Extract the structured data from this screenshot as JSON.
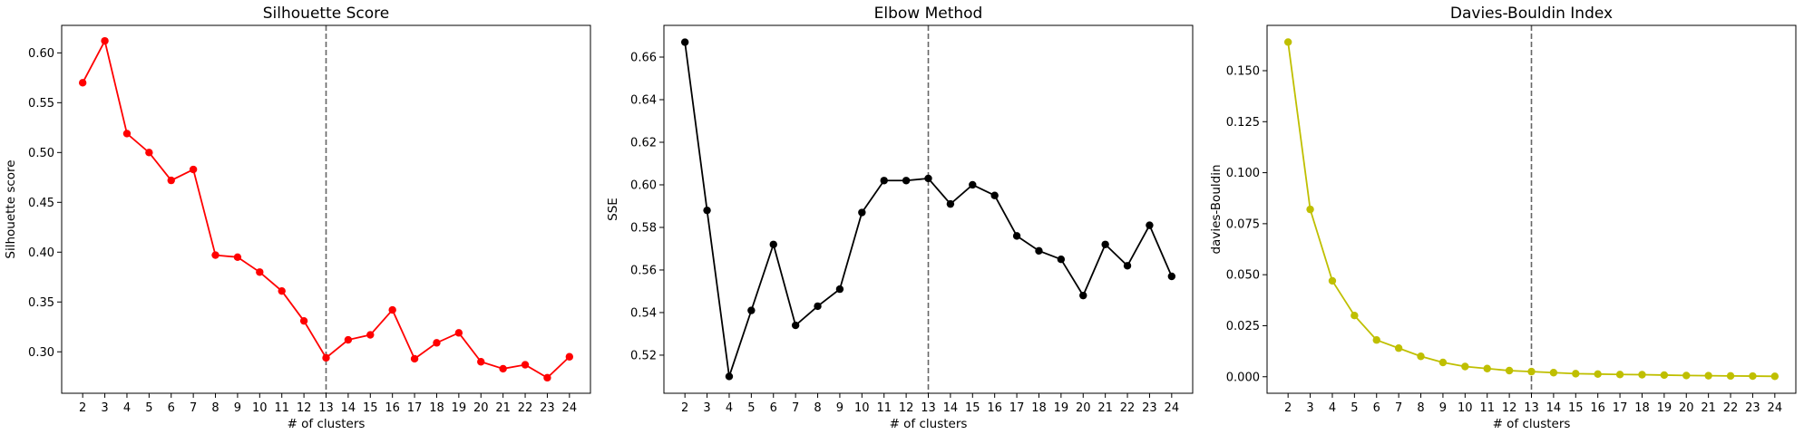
{
  "chart_data": [
    {
      "type": "line",
      "title": "Silhouette Score",
      "xlabel": "# of clusters",
      "ylabel": "Silhouette score",
      "color": "#ff0000",
      "x": [
        2,
        3,
        4,
        5,
        6,
        7,
        8,
        9,
        10,
        11,
        12,
        13,
        14,
        15,
        16,
        17,
        18,
        19,
        20,
        21,
        22,
        23,
        24
      ],
      "values": [
        0.57,
        0.612,
        0.519,
        0.5,
        0.472,
        0.483,
        0.397,
        0.395,
        0.38,
        0.361,
        0.331,
        0.294,
        0.312,
        0.317,
        0.342,
        0.293,
        0.309,
        0.319,
        0.29,
        0.283,
        0.287,
        0.274,
        0.295
      ],
      "xlim": [
        1.05,
        24.95
      ],
      "ylim": [
        0.2584,
        0.6276
      ],
      "yticks": [
        0.3,
        0.35,
        0.4,
        0.45,
        0.5,
        0.55,
        0.6
      ],
      "ytick_labels": [
        "0.30",
        "0.35",
        "0.40",
        "0.45",
        "0.50",
        "0.55",
        "0.60"
      ],
      "vline_x": 13,
      "grid": false
    },
    {
      "type": "line",
      "title": "Elbow Method",
      "xlabel": "# of clusters",
      "ylabel": "SSE",
      "color": "#000000",
      "x": [
        2,
        3,
        4,
        5,
        6,
        7,
        8,
        9,
        10,
        11,
        12,
        13,
        14,
        15,
        16,
        17,
        18,
        19,
        20,
        21,
        22,
        23,
        24
      ],
      "values": [
        0.667,
        0.588,
        0.51,
        0.541,
        0.572,
        0.534,
        0.543,
        0.551,
        0.587,
        0.602,
        0.602,
        0.603,
        0.591,
        0.6,
        0.595,
        0.576,
        0.569,
        0.565,
        0.548,
        0.572,
        0.562,
        0.581,
        0.557
      ],
      "xlim": [
        1.05,
        24.95
      ],
      "ylim": [
        0.5021,
        0.6749
      ],
      "yticks": [
        0.52,
        0.54,
        0.56,
        0.58,
        0.6,
        0.62,
        0.64,
        0.66
      ],
      "ytick_labels": [
        "0.52",
        "0.54",
        "0.56",
        "0.58",
        "0.60",
        "0.62",
        "0.64",
        "0.66"
      ],
      "vline_x": 13,
      "grid": false
    },
    {
      "type": "line",
      "title": "Davies-Bouldin Index",
      "xlabel": "# of clusters",
      "ylabel": "davies-Bouldin",
      "color": "#bfbf00",
      "x": [
        2,
        3,
        4,
        5,
        6,
        7,
        8,
        9,
        10,
        11,
        12,
        13,
        14,
        15,
        16,
        17,
        18,
        19,
        20,
        21,
        22,
        23,
        24
      ],
      "values": [
        0.164,
        0.082,
        0.047,
        0.03,
        0.018,
        0.014,
        0.01,
        0.007,
        0.005,
        0.004,
        0.003,
        0.0025,
        0.002,
        0.0015,
        0.0013,
        0.0011,
        0.001,
        0.0008,
        0.0006,
        0.0005,
        0.0004,
        0.0003,
        0.0002
      ],
      "xlim": [
        1.05,
        24.95
      ],
      "ylim": [
        -0.0081,
        0.1722
      ],
      "yticks": [
        0.0,
        0.025,
        0.05,
        0.075,
        0.1,
        0.125,
        0.15
      ],
      "ytick_labels": [
        "0.000",
        "0.025",
        "0.050",
        "0.075",
        "0.100",
        "0.125",
        "0.150"
      ],
      "vline_x": 13,
      "grid": false
    }
  ]
}
